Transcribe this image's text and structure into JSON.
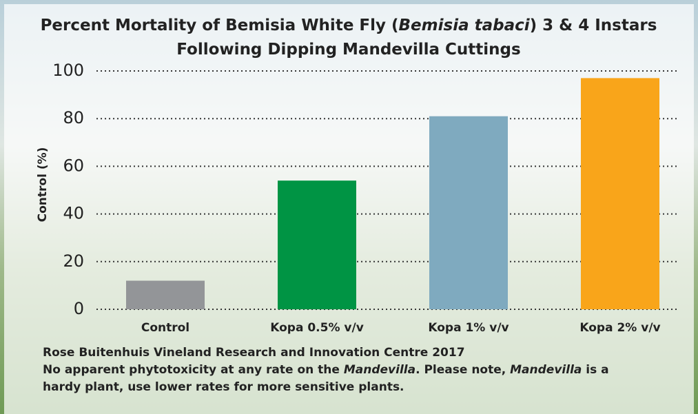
{
  "chart_data": {
    "type": "bar",
    "title": [
      [
        {
          "text": "Percent Mortality of Bemisia White Fly (",
          "italic": false
        },
        {
          "text": "Bemisia tabaci",
          "italic": true
        },
        {
          "text": ") 3 & 4 Instars",
          "italic": false
        }
      ],
      [
        {
          "text": "Following Dipping Mandevilla Cuttings",
          "italic": false
        }
      ]
    ],
    "y_label": "Control (%)",
    "categories": [
      "Control",
      "Kopa 0.5% v/v",
      "Kopa 1% v/v",
      "Kopa 2% v/v"
    ],
    "values": [
      12,
      54,
      81,
      97
    ],
    "colors": [
      "#939598",
      "#009444",
      "#7faabf",
      "#f9a51a"
    ],
    "ylim": [
      0,
      100
    ],
    "yticks": [
      0,
      20,
      40,
      60,
      80,
      100
    ],
    "grid": true,
    "footnote": [
      [
        {
          "text": "Rose Buitenhuis Vineland Research and Innovation Centre 2017",
          "italic": false
        }
      ],
      [
        {
          "text": "No apparent phytotoxicity at any rate on the ",
          "italic": false
        },
        {
          "text": "Mandevilla",
          "italic": true
        },
        {
          "text": ". Please note, ",
          "italic": false
        },
        {
          "text": "Mandevilla",
          "italic": true
        },
        {
          "text": " is a",
          "italic": false
        }
      ],
      [
        {
          "text": "hardy plant, use lower rates for more sensitive plants.",
          "italic": false
        }
      ]
    ]
  }
}
